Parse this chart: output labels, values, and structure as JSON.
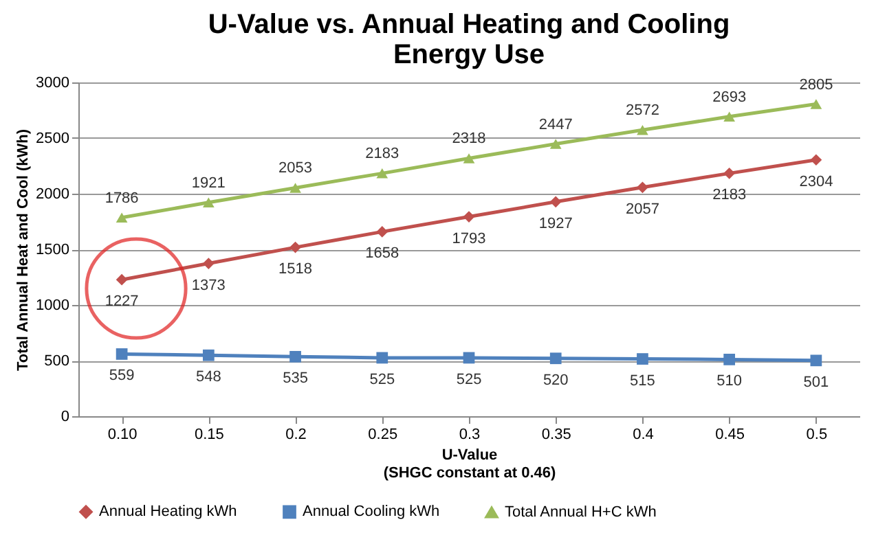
{
  "chart_data": {
    "type": "line",
    "title": "U-Value vs. Annual Heating and Cooling\nEnergy Use",
    "xlabel": "U-Value\n(SHGC constant at 0.46)",
    "ylabel": "Total Annual Heat and Cool (kWh)",
    "categories": [
      "0.10",
      "0.15",
      "0.2",
      "0.25",
      "0.3",
      "0.35",
      "0.4",
      "0.45",
      "0.5"
    ],
    "series": [
      {
        "name": "Annual Heating kWh",
        "color": "#c0504d",
        "marker": "diamond",
        "values": [
          1227,
          1373,
          1518,
          1658,
          1793,
          1927,
          2057,
          2183,
          2304
        ]
      },
      {
        "name": "Annual Cooling kWh",
        "color": "#4f81bd",
        "marker": "square",
        "values": [
          559,
          548,
          535,
          525,
          525,
          520,
          515,
          510,
          501
        ]
      },
      {
        "name": "Total Annual H+C kWh",
        "color": "#9bbb59",
        "marker": "triangle",
        "values": [
          1786,
          1921,
          2053,
          2183,
          2318,
          2447,
          2572,
          2693,
          2805
        ]
      }
    ],
    "ylim": [
      0,
      3000
    ],
    "yticks": [
      0,
      500,
      1000,
      1500,
      2000,
      2500,
      3000
    ],
    "grid": "y",
    "legend": "bottom",
    "data_labels": true,
    "line_style": "solid"
  }
}
